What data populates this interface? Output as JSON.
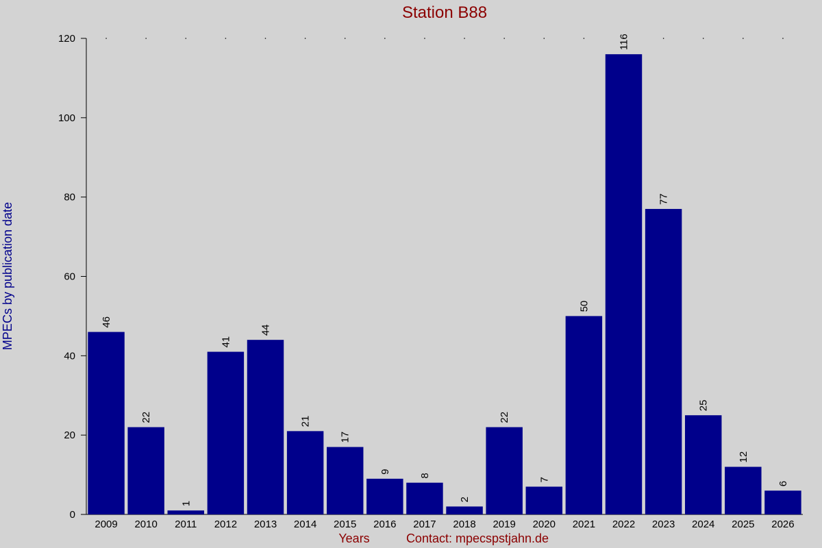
{
  "chart_data": {
    "type": "bar",
    "title": "Station B88",
    "y_label": "MPECs by publication date",
    "x_label": "Years",
    "note": "Contact: mpecspstjahn.de",
    "categories": [
      "2009",
      "2010",
      "2011",
      "2012",
      "2013",
      "2014",
      "2015",
      "2016",
      "2017",
      "2018",
      "2019",
      "2020",
      "2021",
      "2022",
      "2023",
      "2024",
      "2025",
      "2026"
    ],
    "values": [
      46,
      22,
      1,
      41,
      44,
      21,
      17,
      9,
      8,
      2,
      22,
      7,
      50,
      116,
      77,
      25,
      12,
      6
    ],
    "color": "#00008b",
    "ylim": [
      0,
      120
    ],
    "yticks": [
      0,
      20,
      40,
      60,
      80,
      100,
      120
    ]
  }
}
